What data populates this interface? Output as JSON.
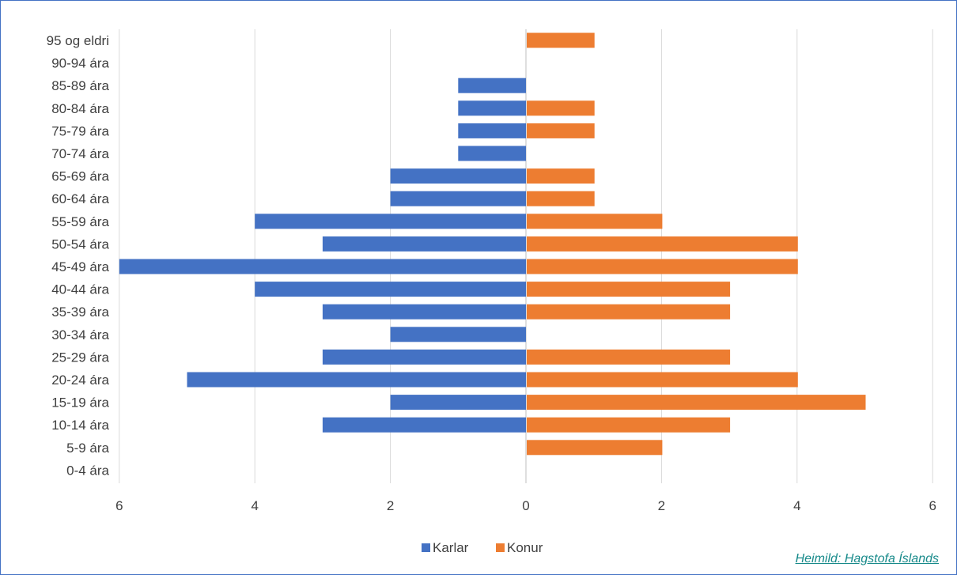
{
  "chart_data": {
    "type": "bar",
    "orientation": "horizontal",
    "categories": [
      "95 og eldri",
      "90-94 ára",
      "85-89 ára",
      "80-84 ára",
      "75-79 ára",
      "70-74 ára",
      "65-69 ára",
      "60-64 ára",
      "55-59 ára",
      "50-54 ára",
      "45-49 ára",
      "40-44 ára",
      "35-39 ára",
      "30-34 ára",
      "25-29 ára",
      "20-24 ára",
      "15-19 ára",
      "10-14 ára",
      "5-9 ára",
      "0-4 ára"
    ],
    "series": [
      {
        "name": "Karlar",
        "color": "#4472c4",
        "side": "left",
        "values": [
          0,
          0,
          1,
          1,
          1,
          1,
          2,
          2,
          4,
          3,
          6,
          4,
          3,
          2,
          3,
          5,
          2,
          3,
          0,
          0
        ]
      },
      {
        "name": "Konur",
        "color": "#ed7d31",
        "side": "right",
        "values": [
          1,
          0,
          0,
          1,
          1,
          0,
          1,
          1,
          2,
          4,
          4,
          3,
          3,
          0,
          3,
          4,
          5,
          3,
          2,
          0
        ]
      }
    ],
    "x_ticks": [
      "6",
      "4",
      "2",
      "0",
      "2",
      "4",
      "6"
    ],
    "xlim": [
      -6,
      6
    ],
    "grid": true,
    "legend": "bottom-center"
  },
  "source": "Heimild: Hagstofa Íslands"
}
